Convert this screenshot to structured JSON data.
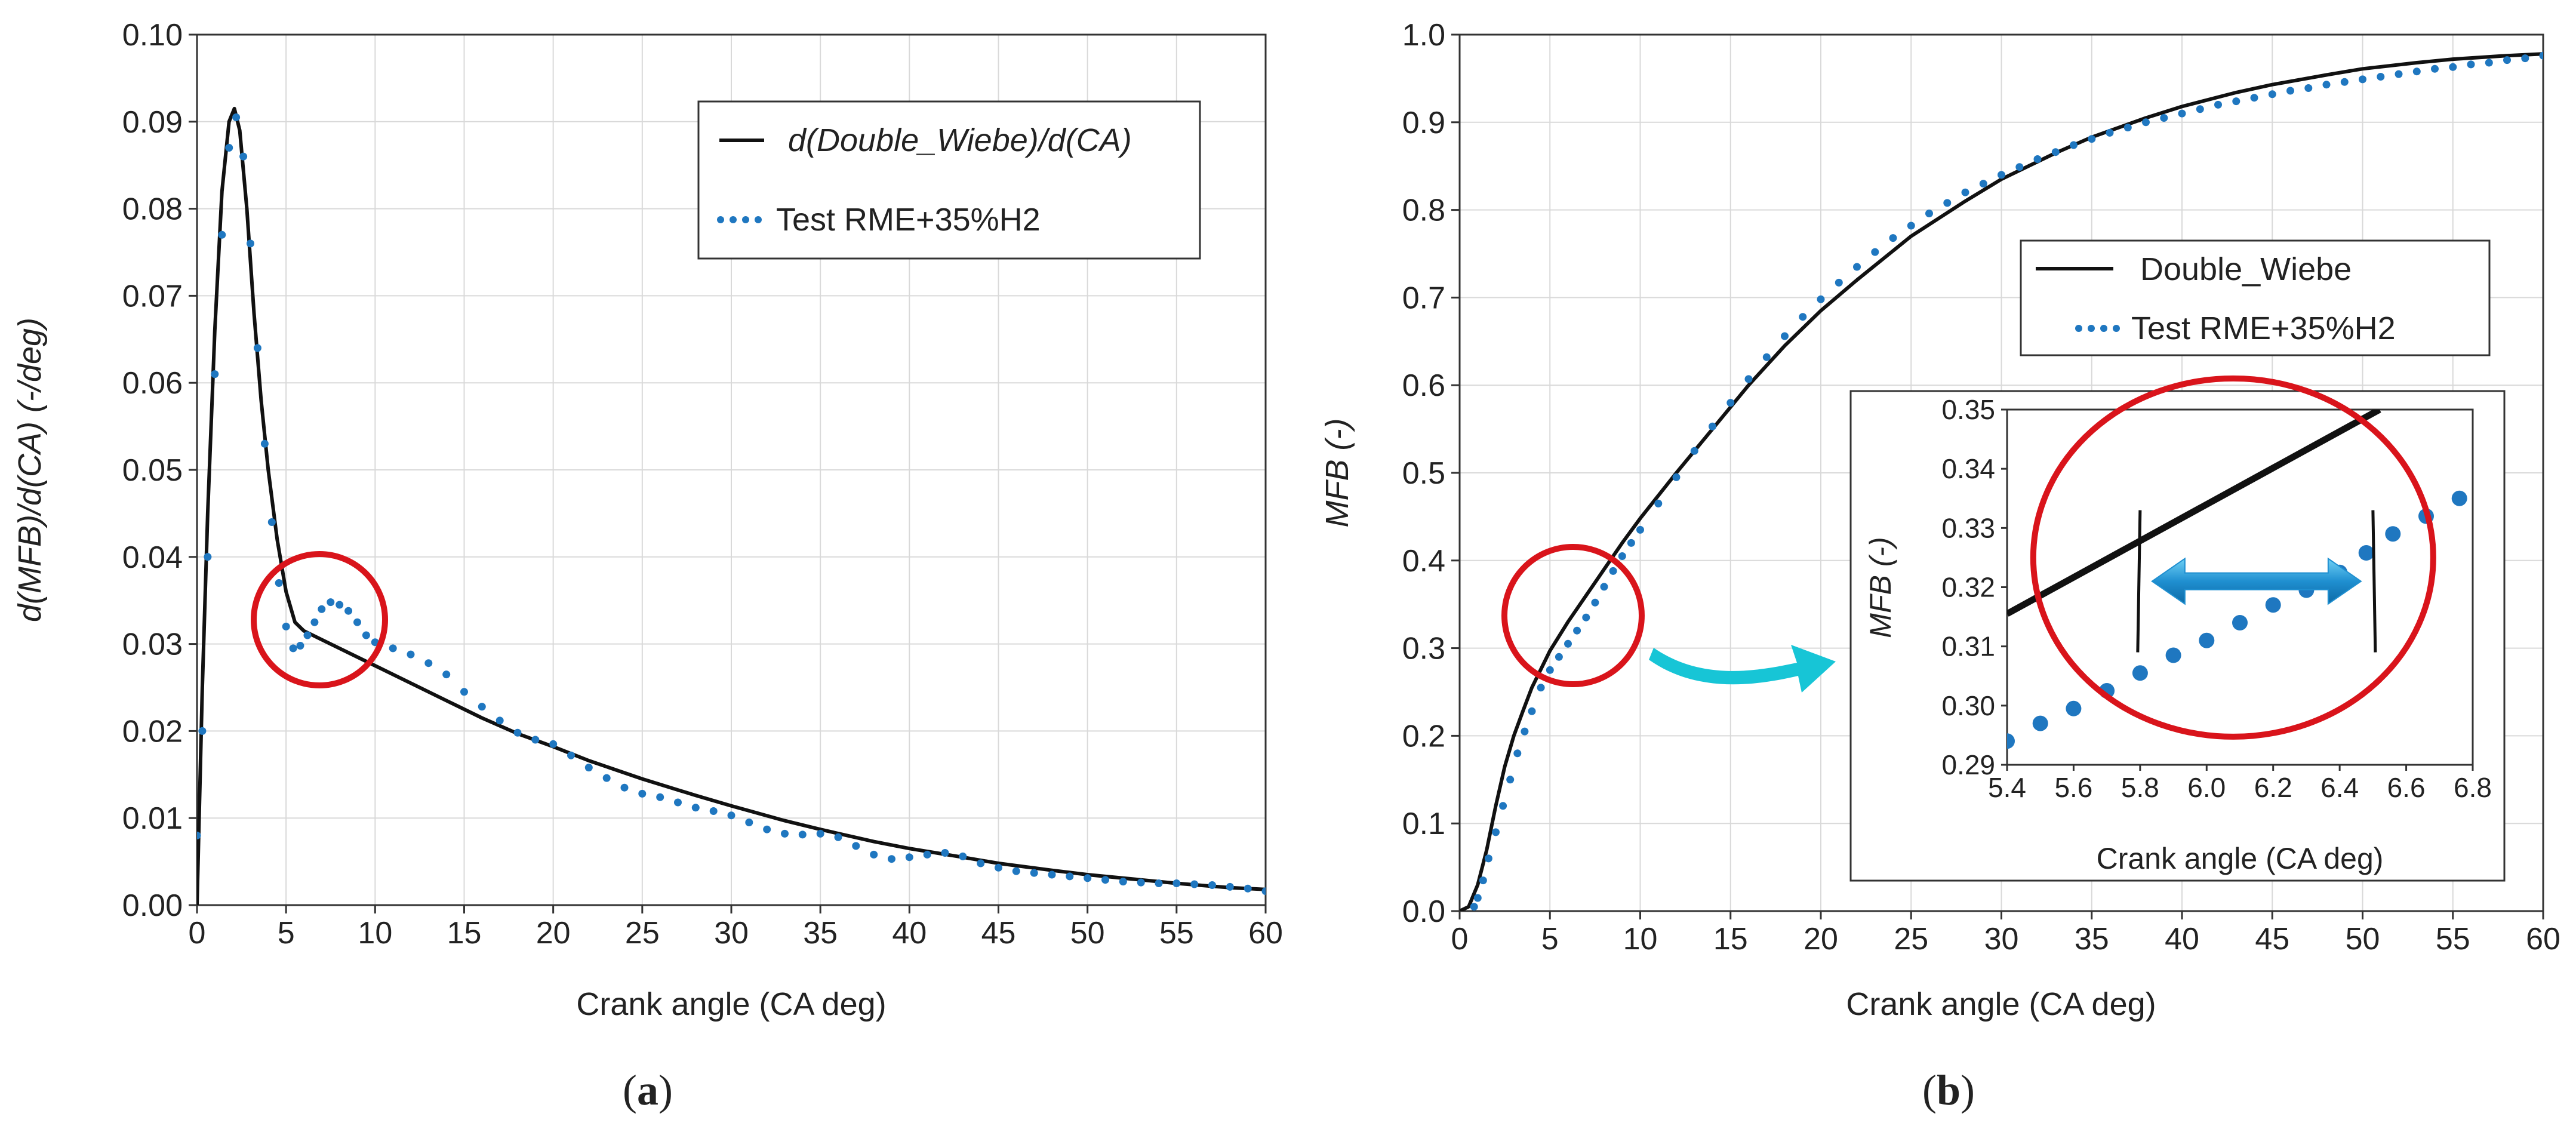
{
  "colors": {
    "model_line": "#111111",
    "test_points": "#1f77c0",
    "highlight_circle": "#d9141b",
    "arrow_cyan": "#17c5d6",
    "arrow_blue": "#1f8fd0",
    "grid": "#d9d9d9"
  },
  "chart_data": [
    {
      "type": "line",
      "caption": "(a)",
      "caption_letter": "a",
      "xlabel": "Crank angle (CA deg)",
      "ylabel": "d(MFB)/d(CA)  (-/deg)",
      "xlim": [
        0,
        60
      ],
      "ylim": [
        0,
        0.1
      ],
      "xticks": [
        "0",
        "5",
        "10",
        "15",
        "20",
        "25",
        "30",
        "35",
        "40",
        "45",
        "50",
        "55",
        "60"
      ],
      "yticks": [
        "0.00",
        "0.01",
        "0.02",
        "0.03",
        "0.04",
        "0.05",
        "0.06",
        "0.07",
        "0.08",
        "0.09",
        "0.10"
      ],
      "grid": true,
      "legend_position": "top-right",
      "series": [
        {
          "name": "d(Double_Wiebe)/d(CA)",
          "style": "solid",
          "x": [
            0,
            0.3,
            0.6,
            1.0,
            1.4,
            1.8,
            2.1,
            2.4,
            2.8,
            3.2,
            3.6,
            4.0,
            4.5,
            5.0,
            5.5,
            6.0,
            7.0,
            8.0,
            9.0,
            10,
            12,
            14,
            16,
            18,
            20,
            22,
            25,
            28,
            30,
            33,
            35,
            38,
            40,
            43,
            45,
            48,
            50,
            53,
            55,
            58,
            60
          ],
          "y": [
            0,
            0.025,
            0.045,
            0.066,
            0.082,
            0.09,
            0.0915,
            0.089,
            0.08,
            0.068,
            0.058,
            0.05,
            0.042,
            0.036,
            0.0325,
            0.0315,
            0.0305,
            0.0295,
            0.0285,
            0.0275,
            0.0255,
            0.0235,
            0.0215,
            0.0197,
            0.0182,
            0.0166,
            0.0145,
            0.0126,
            0.0114,
            0.0097,
            0.0087,
            0.0073,
            0.0065,
            0.0055,
            0.0048,
            0.004,
            0.0035,
            0.0029,
            0.0025,
            0.002,
            0.0018
          ]
        },
        {
          "name": "Test RME+35%H2",
          "style": "dotted",
          "x": [
            0,
            0.3,
            0.6,
            1.0,
            1.4,
            1.8,
            2.2,
            2.6,
            3.0,
            3.4,
            3.8,
            4.2,
            4.6,
            5.0,
            5.4,
            5.8,
            6.2,
            6.6,
            7.0,
            7.5,
            8.0,
            8.5,
            9.0,
            9.5,
            10,
            11,
            12,
            13,
            14,
            15,
            16,
            17,
            18,
            19,
            20,
            21,
            22,
            23,
            24,
            25,
            26,
            27,
            28,
            29,
            30,
            31,
            32,
            33,
            34,
            35,
            36,
            37,
            38,
            39,
            40,
            41,
            42,
            43,
            44,
            45,
            46,
            47,
            48,
            49,
            50,
            51,
            52,
            53,
            54,
            55,
            56,
            57,
            58,
            59,
            60
          ],
          "y": [
            0.008,
            0.02,
            0.04,
            0.061,
            0.077,
            0.087,
            0.0905,
            0.086,
            0.076,
            0.064,
            0.053,
            0.044,
            0.037,
            0.032,
            0.0295,
            0.0298,
            0.031,
            0.0325,
            0.034,
            0.0348,
            0.0345,
            0.0338,
            0.0325,
            0.031,
            0.0302,
            0.0295,
            0.0288,
            0.0278,
            0.0265,
            0.0245,
            0.0228,
            0.0212,
            0.0198,
            0.019,
            0.0185,
            0.0172,
            0.0158,
            0.0146,
            0.0135,
            0.0128,
            0.0124,
            0.0118,
            0.0112,
            0.0108,
            0.0103,
            0.0095,
            0.0087,
            0.0082,
            0.0081,
            0.0082,
            0.0078,
            0.0068,
            0.0058,
            0.0053,
            0.0055,
            0.0058,
            0.006,
            0.0056,
            0.0048,
            0.0043,
            0.0039,
            0.0037,
            0.0035,
            0.0033,
            0.0031,
            0.0029,
            0.0027,
            0.0026,
            0.0025,
            0.0025,
            0.0024,
            0.0023,
            0.0021,
            0.0019,
            0.0016
          ]
        }
      ],
      "annotations": [
        {
          "shape": "circle",
          "center": [
            6.8,
            0.0328
          ],
          "note": "highlighted region"
        }
      ]
    },
    {
      "type": "line",
      "caption": "(b)",
      "caption_letter": "b",
      "xlabel": "Crank angle (CA deg)",
      "ylabel": "MFB  (-)",
      "xlim": [
        0,
        60
      ],
      "ylim": [
        0,
        1.0
      ],
      "xticks": [
        "0",
        "5",
        "10",
        "15",
        "20",
        "25",
        "30",
        "35",
        "40",
        "45",
        "50",
        "55",
        "60"
      ],
      "yticks": [
        "0.0",
        "0.1",
        "0.2",
        "0.3",
        "0.4",
        "0.5",
        "0.6",
        "0.7",
        "0.8",
        "0.9",
        "1.0"
      ],
      "grid": true,
      "legend_position": "top-right",
      "series": [
        {
          "name": "Double_Wiebe",
          "style": "solid",
          "x": [
            0,
            0.5,
            1.0,
            1.5,
            2.0,
            2.5,
            3.0,
            3.5,
            4.0,
            5.0,
            6.0,
            7.0,
            8.0,
            9.0,
            10,
            12,
            14,
            16,
            18,
            20,
            22,
            25,
            28,
            30,
            33,
            35,
            38,
            40,
            43,
            45,
            48,
            50,
            53,
            55,
            58,
            60
          ],
          "y": [
            0,
            0.005,
            0.03,
            0.07,
            0.12,
            0.165,
            0.2,
            0.228,
            0.255,
            0.297,
            0.33,
            0.36,
            0.39,
            0.42,
            0.448,
            0.5,
            0.55,
            0.6,
            0.645,
            0.685,
            0.72,
            0.77,
            0.81,
            0.835,
            0.865,
            0.883,
            0.905,
            0.918,
            0.934,
            0.943,
            0.954,
            0.961,
            0.968,
            0.972,
            0.976,
            0.978
          ]
        },
        {
          "name": "Test RME+35%H2",
          "style": "dotted",
          "x": [
            0.8,
            1.0,
            1.3,
            1.6,
            2.0,
            2.4,
            2.8,
            3.2,
            3.6,
            4.0,
            4.5,
            5.0,
            5.5,
            6.0,
            6.5,
            7.0,
            7.5,
            8.0,
            8.5,
            9.0,
            9.5,
            10,
            11,
            12,
            13,
            14,
            15,
            16,
            17,
            18,
            19,
            20,
            21,
            22,
            23,
            24,
            25,
            26,
            27,
            28,
            29,
            30,
            31,
            32,
            33,
            34,
            35,
            36,
            37,
            38,
            39,
            40,
            41,
            42,
            43,
            44,
            45,
            46,
            47,
            48,
            49,
            50,
            51,
            52,
            53,
            54,
            55,
            56,
            57,
            58,
            59,
            60
          ],
          "y": [
            0.005,
            0.015,
            0.035,
            0.06,
            0.09,
            0.12,
            0.15,
            0.18,
            0.205,
            0.228,
            0.255,
            0.275,
            0.29,
            0.305,
            0.32,
            0.335,
            0.352,
            0.37,
            0.388,
            0.405,
            0.42,
            0.435,
            0.465,
            0.495,
            0.525,
            0.553,
            0.58,
            0.607,
            0.632,
            0.656,
            0.678,
            0.698,
            0.717,
            0.735,
            0.752,
            0.768,
            0.782,
            0.796,
            0.808,
            0.82,
            0.83,
            0.84,
            0.849,
            0.858,
            0.866,
            0.874,
            0.881,
            0.888,
            0.894,
            0.9,
            0.905,
            0.91,
            0.915,
            0.92,
            0.924,
            0.928,
            0.932,
            0.936,
            0.939,
            0.943,
            0.946,
            0.949,
            0.952,
            0.955,
            0.958,
            0.961,
            0.963,
            0.966,
            0.968,
            0.971,
            0.973,
            0.976
          ]
        }
      ],
      "annotations": [
        {
          "shape": "circle",
          "center": [
            6.3,
            0.335
          ],
          "note": "highlighted region, magnified in inset"
        }
      ],
      "inset": {
        "type": "line",
        "xlabel": "Crank angle (CA deg)",
        "ylabel": "MFB  (-)",
        "xlim": [
          5.4,
          6.8
        ],
        "ylim": [
          0.29,
          0.35
        ],
        "xticks": [
          "5.4",
          "5.6",
          "5.8",
          "6.0",
          "6.2",
          "6.4",
          "6.6",
          "6.8"
        ],
        "yticks": [
          "0.29",
          "0.30",
          "0.31",
          "0.32",
          "0.33",
          "0.34",
          "0.35"
        ],
        "grid": false,
        "series": [
          {
            "name": "Double_Wiebe",
            "style": "solid",
            "x": [
              5.4,
              6.52
            ],
            "y": [
              0.3155,
              0.35
            ]
          },
          {
            "name": "Test RME+35%H2",
            "style": "markers",
            "x": [
              5.4,
              5.5,
              5.6,
              5.7,
              5.8,
              5.9,
              6.0,
              6.1,
              6.2,
              6.3,
              6.4,
              6.48,
              6.56,
              6.66,
              6.76
            ],
            "y": [
              0.294,
              0.297,
              0.2995,
              0.3025,
              0.3055,
              0.3085,
              0.311,
              0.314,
              0.317,
              0.3195,
              0.3225,
              0.3258,
              0.329,
              0.332,
              0.335
            ]
          }
        ],
        "annotations": [
          {
            "shape": "double-arrow",
            "from_x": 5.8,
            "to_x": 6.5,
            "y": 0.321
          },
          {
            "shape": "vertical-marker",
            "x": 5.8
          },
          {
            "shape": "vertical-marker",
            "x": 6.5
          },
          {
            "shape": "circle",
            "center": [
              6.08,
              0.325
            ],
            "note": "highlighted region"
          }
        ]
      }
    }
  ]
}
